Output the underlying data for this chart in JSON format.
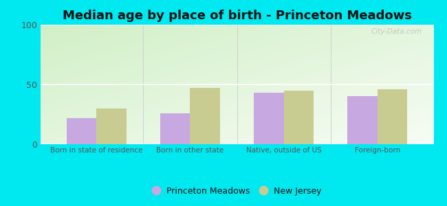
{
  "title": "Median age by place of birth - Princeton Meadows",
  "categories": [
    "Born in state of residence",
    "Born in other state",
    "Native, outside of US",
    "Foreign-born"
  ],
  "princeton_meadows": [
    22,
    26,
    43,
    40
  ],
  "new_jersey": [
    30,
    47,
    45,
    46
  ],
  "princeton_color": "#c8a8e0",
  "nj_color": "#c8cc90",
  "ylim": [
    0,
    100
  ],
  "yticks": [
    0,
    50,
    100
  ],
  "bg_color": "#00e8f0",
  "bar_width": 0.32,
  "title_fontsize": 13,
  "legend_labels": [
    "Princeton Meadows",
    "New Jersey"
  ],
  "watermark": "City-Data.com"
}
